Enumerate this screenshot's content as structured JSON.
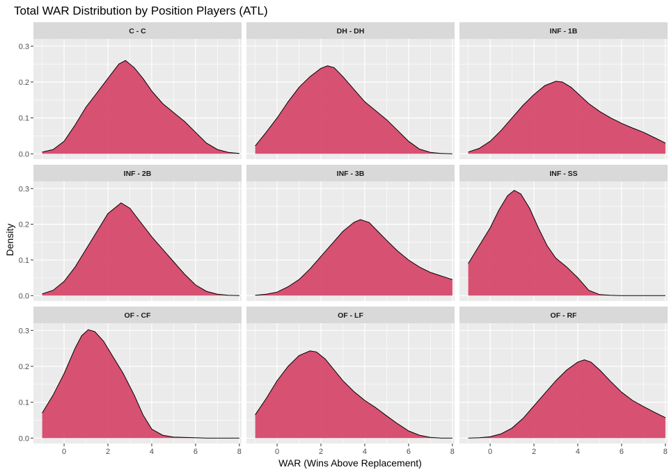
{
  "chart_data": {
    "type": "area",
    "title": "Total WAR Distribution by Position Players (ATL)",
    "xlabel": "WAR (Wins Above Replacement)",
    "ylabel": "Density",
    "xlim": [
      -1.4,
      8.1
    ],
    "ylim": [
      -0.015,
      0.32
    ],
    "x_ticks": [
      0,
      2,
      4,
      6,
      8
    ],
    "x_tick_labels": [
      "0",
      "2",
      "4",
      "6",
      "8"
    ],
    "y_ticks": [
      0,
      0.1,
      0.2,
      0.3
    ],
    "y_tick_labels": [
      "0.0",
      "0.1",
      "0.2",
      "0.3"
    ],
    "grid": true,
    "legend": "none",
    "colors": {
      "fill": "#d6496c",
      "stroke": "#000000",
      "panel_bg": "#ebebeb",
      "strip_bg": "#d9d9d9",
      "grid": "#ffffff"
    },
    "facets": [
      {
        "label": "C - C",
        "x": [
          -1,
          -0.5,
          0,
          0.5,
          1,
          1.5,
          2,
          2.5,
          2.8,
          3.2,
          3.6,
          4,
          4.5,
          5,
          5.5,
          6,
          6.5,
          7,
          7.5,
          8
        ],
        "y": [
          0.005,
          0.012,
          0.035,
          0.08,
          0.13,
          0.17,
          0.21,
          0.25,
          0.26,
          0.24,
          0.21,
          0.175,
          0.14,
          0.115,
          0.09,
          0.06,
          0.03,
          0.012,
          0.004,
          0.001
        ]
      },
      {
        "label": "DH - DH",
        "x": [
          -1,
          -0.5,
          0,
          0.5,
          1,
          1.5,
          2,
          2.3,
          2.6,
          3,
          3.5,
          4,
          4.5,
          5,
          5.5,
          6,
          6.5,
          7,
          7.5,
          8
        ],
        "y": [
          0.022,
          0.06,
          0.1,
          0.145,
          0.185,
          0.215,
          0.238,
          0.245,
          0.24,
          0.215,
          0.18,
          0.145,
          0.12,
          0.095,
          0.065,
          0.035,
          0.013,
          0.004,
          0.001,
          0.0
        ]
      },
      {
        "label": "INF - 1B",
        "x": [
          -1,
          -0.5,
          0,
          0.5,
          1,
          1.5,
          2,
          2.5,
          3,
          3.3,
          3.7,
          4,
          4.5,
          5,
          5.5,
          6,
          6.5,
          7,
          7.5,
          8
        ],
        "y": [
          0.005,
          0.015,
          0.035,
          0.065,
          0.1,
          0.135,
          0.165,
          0.19,
          0.202,
          0.2,
          0.185,
          0.168,
          0.14,
          0.118,
          0.1,
          0.085,
          0.072,
          0.06,
          0.045,
          0.03
        ]
      },
      {
        "label": "INF - 2B",
        "x": [
          -1,
          -0.5,
          0,
          0.5,
          1,
          1.5,
          2,
          2.6,
          3,
          3.5,
          4,
          4.5,
          5,
          5.5,
          6,
          6.5,
          7,
          7.5,
          8
        ],
        "y": [
          0.005,
          0.015,
          0.04,
          0.08,
          0.13,
          0.18,
          0.23,
          0.26,
          0.245,
          0.205,
          0.165,
          0.13,
          0.095,
          0.06,
          0.03,
          0.012,
          0.004,
          0.001,
          0.0
        ]
      },
      {
        "label": "INF - 3B",
        "x": [
          -1,
          -0.5,
          0,
          0.5,
          1,
          1.5,
          2,
          2.5,
          3,
          3.5,
          3.8,
          4.2,
          4.6,
          5,
          5.5,
          6,
          6.5,
          7,
          7.5,
          8
        ],
        "y": [
          0.001,
          0.004,
          0.01,
          0.025,
          0.045,
          0.075,
          0.11,
          0.145,
          0.18,
          0.205,
          0.213,
          0.205,
          0.18,
          0.155,
          0.125,
          0.1,
          0.08,
          0.065,
          0.055,
          0.045
        ]
      },
      {
        "label": "INF - SS",
        "x": [
          -1,
          -0.5,
          0,
          0.4,
          0.8,
          1.1,
          1.4,
          1.8,
          2.2,
          2.6,
          3,
          3.5,
          4,
          4.5,
          5,
          5.5,
          6,
          6.5,
          7,
          8
        ],
        "y": [
          0.09,
          0.14,
          0.19,
          0.24,
          0.28,
          0.295,
          0.285,
          0.245,
          0.19,
          0.14,
          0.105,
          0.08,
          0.05,
          0.015,
          0.003,
          0.001,
          0.0,
          0.0,
          0.0,
          0.0
        ]
      },
      {
        "label": "OF - CF",
        "x": [
          -1,
          -0.5,
          0,
          0.5,
          0.8,
          1.1,
          1.4,
          1.8,
          2.2,
          2.7,
          3.2,
          3.6,
          4,
          4.5,
          5,
          5.5,
          6,
          6.5,
          7,
          8
        ],
        "y": [
          0.07,
          0.12,
          0.18,
          0.25,
          0.285,
          0.302,
          0.297,
          0.27,
          0.23,
          0.18,
          0.12,
          0.065,
          0.025,
          0.008,
          0.003,
          0.002,
          0.001,
          0.0,
          0.0,
          0.0
        ]
      },
      {
        "label": "OF - LF",
        "x": [
          -1,
          -0.5,
          0,
          0.5,
          1,
          1.5,
          1.8,
          2.2,
          2.6,
          3,
          3.5,
          4,
          4.5,
          5,
          5.5,
          6,
          6.5,
          7,
          7.5,
          8
        ],
        "y": [
          0.065,
          0.11,
          0.16,
          0.2,
          0.23,
          0.243,
          0.24,
          0.22,
          0.19,
          0.16,
          0.13,
          0.105,
          0.085,
          0.062,
          0.04,
          0.02,
          0.008,
          0.002,
          0.0,
          0.0
        ]
      },
      {
        "label": "OF - RF",
        "x": [
          -1,
          -0.5,
          0,
          0.5,
          1,
          1.5,
          2,
          2.5,
          3,
          3.5,
          4,
          4.3,
          4.6,
          5,
          5.5,
          6,
          6.5,
          7,
          7.5,
          8
        ],
        "y": [
          0.0,
          0.001,
          0.004,
          0.012,
          0.028,
          0.055,
          0.09,
          0.125,
          0.16,
          0.19,
          0.212,
          0.218,
          0.212,
          0.19,
          0.158,
          0.128,
          0.105,
          0.088,
          0.072,
          0.057
        ]
      }
    ]
  }
}
